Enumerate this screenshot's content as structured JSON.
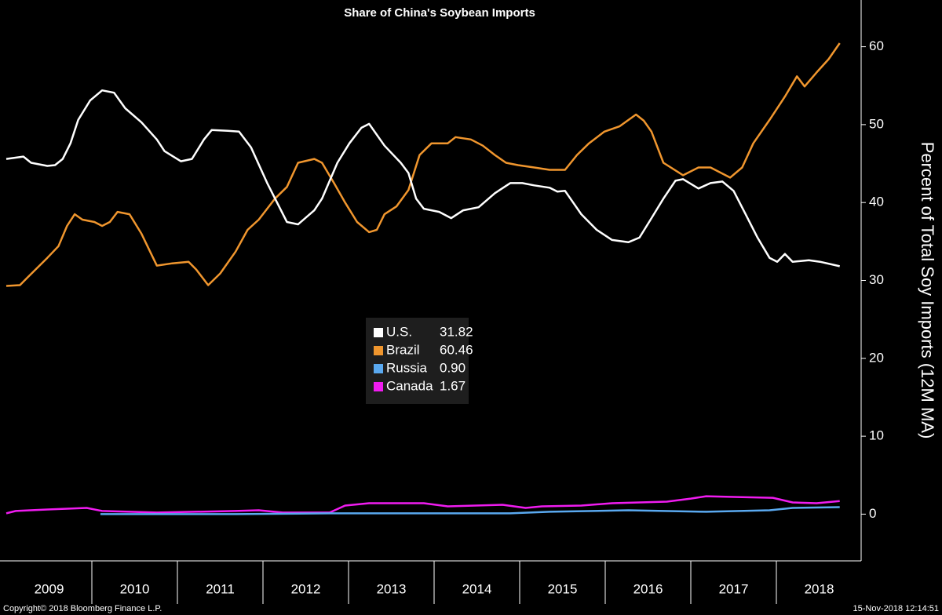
{
  "chart_data": {
    "type": "line",
    "title": "Share of China's Soybean Imports",
    "y_label": "Percent of Total Soy Imports (12M MA)",
    "footer_left": "Copyright© 2018 Bloomberg Finance L.P.",
    "footer_right": "15-Nov-2018 12:14:51",
    "xlim": [
      2009,
      2019
    ],
    "year_labels": [
      2009,
      2010,
      2011,
      2012,
      2013,
      2014,
      2015,
      2016,
      2017,
      2018
    ],
    "ylim": [
      -6,
      66
    ],
    "yticks": [
      0,
      10,
      20,
      30,
      40,
      50,
      60
    ],
    "grid": false,
    "legend": "center",
    "series": [
      {
        "name": "U.S.",
        "color": "#ffffff",
        "last_label": "31.82",
        "x": [
          2009.0,
          2009.2,
          2009.29,
          2009.48,
          2009.57,
          2009.66,
          2009.75,
          2009.84,
          2009.98,
          2010.12,
          2010.26,
          2010.39,
          2010.58,
          2010.76,
          2010.85,
          2011.04,
          2011.17,
          2011.31,
          2011.4,
          2011.59,
          2011.72,
          2011.86,
          2012.05,
          2012.28,
          2012.41,
          2012.6,
          2012.69,
          2012.87,
          2013.01,
          2013.15,
          2013.24,
          2013.42,
          2013.61,
          2013.7,
          2013.79,
          2013.88,
          2014.06,
          2014.2,
          2014.34,
          2014.52,
          2014.71,
          2014.89,
          2015.03,
          2015.17,
          2015.35,
          2015.44,
          2015.53,
          2015.72,
          2015.9,
          2016.08,
          2016.27,
          2016.4,
          2016.54,
          2016.68,
          2016.82,
          2016.91,
          2017.09,
          2017.23,
          2017.37,
          2017.5,
          2017.64,
          2017.78,
          2017.92,
          2018.01,
          2018.1,
          2018.19,
          2018.38,
          2018.51,
          2018.74
        ],
        "values": [
          45.6,
          45.9,
          45.1,
          44.7,
          44.8,
          45.6,
          47.6,
          50.6,
          53.1,
          54.4,
          54.1,
          52.1,
          50.3,
          48.1,
          46.6,
          45.3,
          45.6,
          48.1,
          49.3,
          49.2,
          49.1,
          47.1,
          42.5,
          37.5,
          37.2,
          39.0,
          40.5,
          45.1,
          47.6,
          49.6,
          50.1,
          47.3,
          45.1,
          43.8,
          40.5,
          39.2,
          38.8,
          38.0,
          39.0,
          39.4,
          41.2,
          42.5,
          42.5,
          42.2,
          41.9,
          41.4,
          41.5,
          38.5,
          36.5,
          35.2,
          34.9,
          35.5,
          38.0,
          40.5,
          42.8,
          43.0,
          41.8,
          42.5,
          42.7,
          41.5,
          38.5,
          35.5,
          32.9,
          32.4,
          33.4,
          32.4,
          32.6,
          32.4,
          31.82
        ]
      },
      {
        "name": "Brazil",
        "color": "#f0962e",
        "last_label": "60.46",
        "x": [
          2009.0,
          2009.16,
          2009.25,
          2009.48,
          2009.61,
          2009.71,
          2009.8,
          2009.89,
          2010.03,
          2010.12,
          2010.21,
          2010.3,
          2010.44,
          2010.58,
          2010.76,
          2010.94,
          2011.13,
          2011.22,
          2011.36,
          2011.5,
          2011.68,
          2011.82,
          2011.95,
          2012.14,
          2012.28,
          2012.41,
          2012.6,
          2012.69,
          2012.83,
          2012.96,
          2013.1,
          2013.24,
          2013.33,
          2013.42,
          2013.56,
          2013.7,
          2013.83,
          2013.97,
          2014.16,
          2014.25,
          2014.43,
          2014.57,
          2014.71,
          2014.84,
          2014.98,
          2015.17,
          2015.35,
          2015.53,
          2015.67,
          2015.81,
          2015.99,
          2016.17,
          2016.36,
          2016.45,
          2016.54,
          2016.68,
          2016.91,
          2017.09,
          2017.23,
          2017.46,
          2017.6,
          2017.73,
          2017.92,
          2018.1,
          2018.24,
          2018.33,
          2018.47,
          2018.61,
          2018.74
        ],
        "values": [
          29.3,
          29.4,
          30.4,
          32.9,
          34.4,
          37.0,
          38.5,
          37.8,
          37.5,
          37.0,
          37.5,
          38.8,
          38.5,
          36.0,
          31.9,
          32.2,
          32.4,
          31.4,
          29.4,
          30.9,
          33.7,
          36.5,
          37.8,
          40.5,
          42.0,
          45.1,
          45.6,
          45.1,
          42.5,
          40.0,
          37.5,
          36.2,
          36.5,
          38.5,
          39.5,
          41.6,
          46.1,
          47.6,
          47.6,
          48.4,
          48.1,
          47.3,
          46.1,
          45.1,
          44.8,
          44.5,
          44.2,
          44.2,
          46.1,
          47.6,
          49.1,
          49.8,
          51.3,
          50.5,
          49.1,
          45.1,
          43.5,
          44.5,
          44.5,
          43.2,
          44.5,
          47.6,
          50.6,
          53.6,
          56.2,
          54.9,
          56.7,
          58.4,
          60.46
        ]
      },
      {
        "name": "Russia",
        "color": "#5aa9f0",
        "last_label": "0.90",
        "x": [
          2010.1,
          2011.68,
          2012.78,
          2014.06,
          2014.89,
          2015.35,
          2016.27,
          2017.18,
          2017.92,
          2018.19,
          2018.74
        ],
        "values": [
          0,
          0,
          0.1,
          0.1,
          0.1,
          0.3,
          0.5,
          0.3,
          0.5,
          0.8,
          0.9
        ]
      },
      {
        "name": "Canada",
        "color": "#f01cf0",
        "last_label": "1.67",
        "x": [
          2009.0,
          2009.11,
          2009.48,
          2009.94,
          2010.12,
          2010.76,
          2011.68,
          2011.95,
          2012.23,
          2012.78,
          2012.96,
          2013.24,
          2013.88,
          2014.16,
          2014.8,
          2015.07,
          2015.26,
          2015.72,
          2016.08,
          2016.72,
          2017.0,
          2017.18,
          2017.55,
          2017.96,
          2018.19,
          2018.47,
          2018.74
        ],
        "values": [
          0.1,
          0.4,
          0.6,
          0.8,
          0.4,
          0.2,
          0.4,
          0.5,
          0.2,
          0.2,
          1.1,
          1.4,
          1.4,
          1.0,
          1.2,
          0.8,
          1.0,
          1.1,
          1.4,
          1.6,
          2.0,
          2.3,
          2.2,
          2.1,
          1.5,
          1.4,
          1.67
        ]
      }
    ]
  }
}
